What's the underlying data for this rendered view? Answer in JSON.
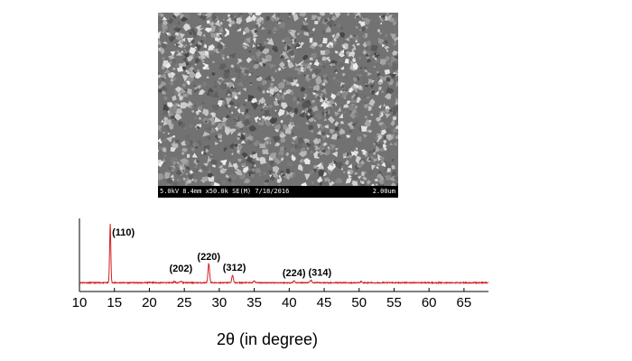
{
  "sem": {
    "info_text": "5.0kV 8.4mm x50.0k SE(M) 7/18/2016",
    "scale_text": "2.00um",
    "image_description_icon": "grain-texture"
  },
  "chart_data": {
    "type": "line",
    "title": "",
    "xlabel": "2θ (in degree)",
    "ylabel": "",
    "xlim": [
      10,
      68.5
    ],
    "ylim": [
      0,
      100
    ],
    "xticks": [
      10,
      15,
      20,
      25,
      30,
      35,
      40,
      45,
      50,
      55,
      60,
      65
    ],
    "grid": false,
    "color": "#d42020",
    "baseline": 4,
    "peaks": [
      {
        "x": 14.4,
        "height": 100,
        "label": "(110)"
      },
      {
        "x": 20.1,
        "height": 5,
        "label": ""
      },
      {
        "x": 23.6,
        "height": 6,
        "label": ""
      },
      {
        "x": 24.5,
        "height": 7,
        "label": "(202)"
      },
      {
        "x": 28.5,
        "height": 35,
        "label": "(220)"
      },
      {
        "x": 31.9,
        "height": 16,
        "label": "(312)"
      },
      {
        "x": 35.0,
        "height": 3,
        "label": ""
      },
      {
        "x": 40.7,
        "height": 7,
        "label": "(224)"
      },
      {
        "x": 43.1,
        "height": 4,
        "label": "(314)"
      },
      {
        "x": 50.3,
        "height": 2,
        "label": ""
      }
    ]
  }
}
